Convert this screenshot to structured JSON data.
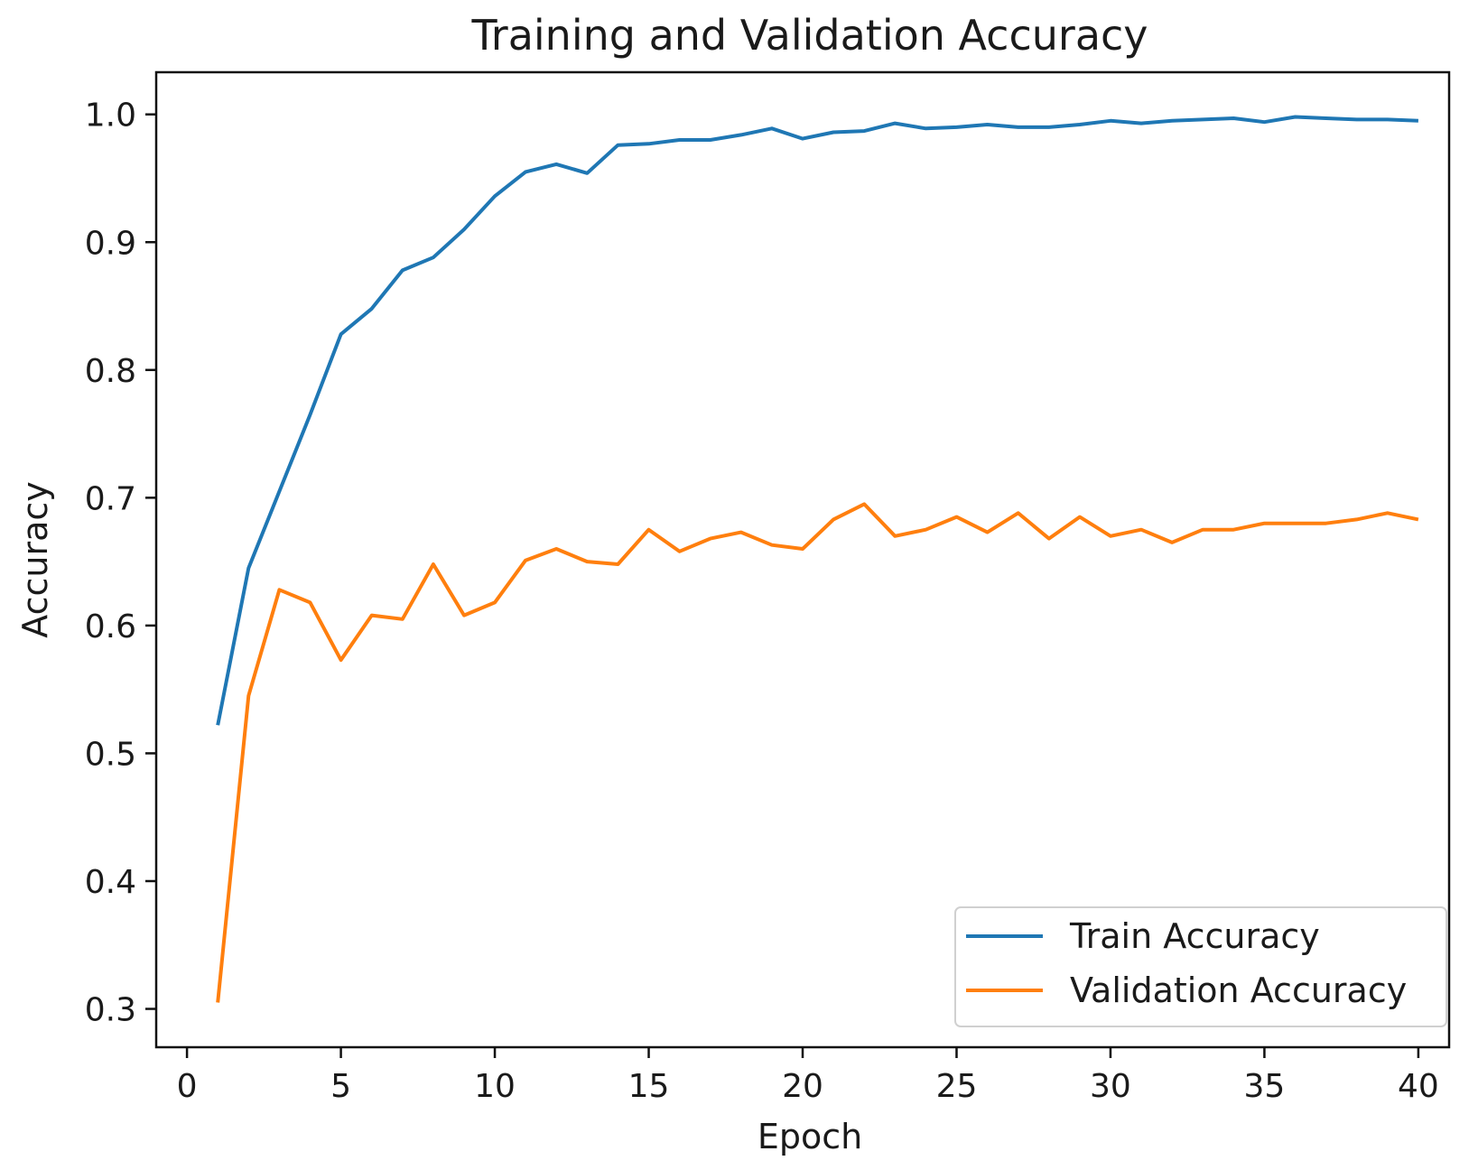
{
  "chart_data": {
    "type": "line",
    "title": "Training and Validation Accuracy",
    "xlabel": "Epoch",
    "ylabel": "Accuracy",
    "xlim": [
      -1,
      41
    ],
    "ylim": [
      0.27,
      1.033
    ],
    "xticks": [
      0,
      5,
      10,
      15,
      20,
      25,
      30,
      35,
      40
    ],
    "yticks": [
      0.3,
      0.4,
      0.5,
      0.6,
      0.7,
      0.8,
      0.9,
      1.0
    ],
    "ytick_labels": [
      "0.3",
      "0.4",
      "0.5",
      "0.6",
      "0.7",
      "0.8",
      "0.9",
      "1.0"
    ],
    "grid": false,
    "legend_position": "lower-right",
    "x": [
      1,
      2,
      3,
      4,
      5,
      6,
      7,
      8,
      9,
      10,
      11,
      12,
      13,
      14,
      15,
      16,
      17,
      18,
      19,
      20,
      21,
      22,
      23,
      24,
      25,
      26,
      27,
      28,
      29,
      30,
      31,
      32,
      33,
      34,
      35,
      36,
      37,
      38,
      39,
      40
    ],
    "series": [
      {
        "name": "Train Accuracy",
        "color": "#1f77b4",
        "values": [
          0.522,
          0.645,
          0.705,
          0.765,
          0.828,
          0.848,
          0.878,
          0.888,
          0.91,
          0.936,
          0.955,
          0.961,
          0.954,
          0.976,
          0.977,
          0.98,
          0.98,
          0.984,
          0.989,
          0.981,
          0.986,
          0.987,
          0.993,
          0.989,
          0.99,
          0.992,
          0.99,
          0.99,
          0.992,
          0.995,
          0.993,
          0.995,
          0.996,
          0.997,
          0.994,
          0.998,
          0.997,
          0.996,
          0.996,
          0.995
        ]
      },
      {
        "name": "Validation Accuracy",
        "color": "#ff7f0e",
        "values": [
          0.305,
          0.545,
          0.628,
          0.618,
          0.573,
          0.608,
          0.605,
          0.648,
          0.608,
          0.618,
          0.651,
          0.66,
          0.65,
          0.648,
          0.675,
          0.658,
          0.668,
          0.673,
          0.663,
          0.66,
          0.683,
          0.695,
          0.67,
          0.675,
          0.685,
          0.673,
          0.688,
          0.668,
          0.685,
          0.67,
          0.675,
          0.665,
          0.675,
          0.675,
          0.68,
          0.68,
          0.68,
          0.683,
          0.688,
          0.683
        ]
      }
    ]
  }
}
